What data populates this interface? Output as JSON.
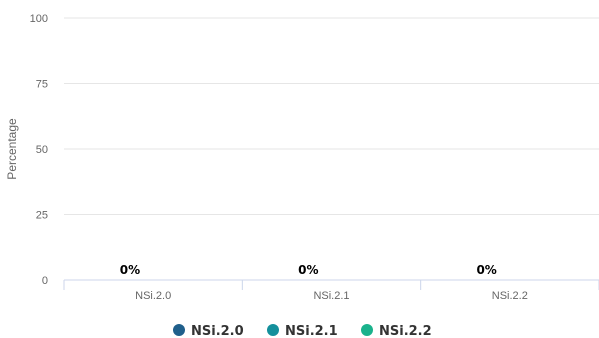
{
  "chart_data": {
    "type": "bar",
    "ylabel": "Percentage",
    "ylim": [
      0,
      100
    ],
    "yticks": [
      0,
      25,
      50,
      75,
      100
    ],
    "categories": [
      "NSi.2.0",
      "NSi.2.1",
      "NSi.2.2"
    ],
    "series": [
      {
        "name": "NSi.2.0",
        "color": "#1f5f8b",
        "values": [
          0,
          null,
          null
        ]
      },
      {
        "name": "NSi.2.1",
        "color": "#14909c",
        "values": [
          null,
          0,
          null
        ]
      },
      {
        "name": "NSi.2.2",
        "color": "#1ab28c",
        "values": [
          null,
          null,
          0
        ]
      }
    ],
    "data_labels": [
      "0%",
      "0%",
      "0%"
    ],
    "grid": true,
    "legend_position": "bottom"
  }
}
